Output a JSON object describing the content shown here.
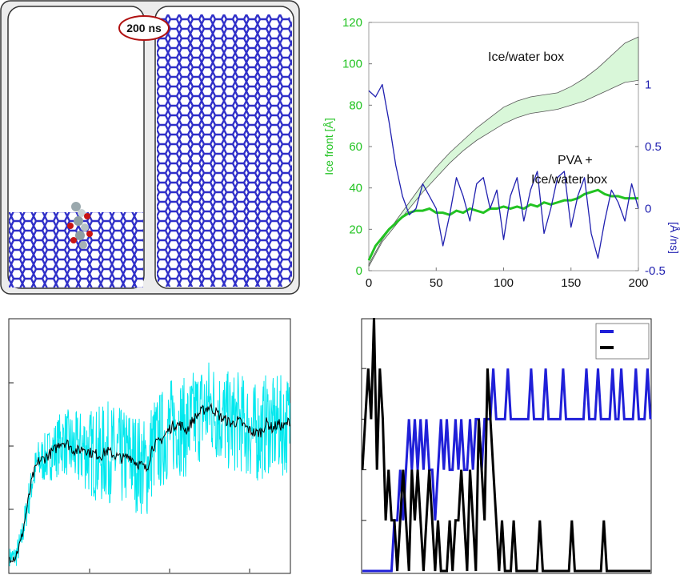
{
  "badge": "200 ns",
  "colors": {
    "ice": "#2f2fc8",
    "front": "#22c322",
    "band_fill": "#d9f7d9",
    "rate": "#2020b0",
    "cyan": "#00e8ee",
    "black": "#000000",
    "blue": "#1f1fd8",
    "badge_border": "#b01010"
  },
  "chart_data": [
    {
      "type": "line",
      "panel": "ice-front-vs-time",
      "yaxis_left": {
        "label": "Ice front [Å]",
        "ticks": [
          "0",
          "20",
          "40",
          "60",
          "80",
          "100",
          "120"
        ],
        "lim": [
          0,
          120
        ]
      },
      "yaxis_right": {
        "label": "[Å /ns]",
        "ticks": [
          "-0.5",
          "0",
          "0.5",
          "1"
        ],
        "lim": [
          -0.5,
          1.5
        ]
      },
      "xaxis": {
        "ticks": [
          "0",
          "50",
          "100",
          "150",
          "200"
        ],
        "lim": [
          0,
          200
        ]
      },
      "annotations": [
        "Ice/water box",
        "PVA +",
        "Ice/water box"
      ],
      "series": [
        {
          "axis": "left",
          "kind": "band",
          "x": [
            0,
            10,
            20,
            30,
            40,
            50,
            60,
            70,
            80,
            90,
            100,
            110,
            120,
            130,
            140,
            150,
            160,
            170,
            180,
            190,
            200
          ],
          "lower": [
            2,
            14,
            22,
            30,
            38,
            45,
            52,
            58,
            63,
            67,
            71,
            74,
            76,
            77,
            78,
            80,
            82,
            85,
            88,
            91,
            92
          ],
          "upper": [
            3,
            15,
            24,
            33,
            42,
            50,
            57,
            63,
            69,
            74,
            79,
            82,
            84,
            85,
            86,
            89,
            93,
            98,
            104,
            110,
            113
          ]
        },
        {
          "axis": "left",
          "kind": "line",
          "x": [
            0,
            5,
            10,
            15,
            20,
            25,
            30,
            35,
            40,
            45,
            50,
            55,
            60,
            65,
            70,
            75,
            80,
            85,
            90,
            95,
            100,
            105,
            110,
            115,
            120,
            125,
            130,
            135,
            140,
            145,
            150,
            155,
            160,
            165,
            170,
            175,
            180,
            185,
            190,
            195,
            200
          ],
          "y": [
            5,
            12,
            16,
            20,
            23,
            26,
            28,
            29,
            29,
            30,
            28,
            28,
            27,
            29,
            28,
            30,
            29,
            28,
            30,
            30,
            31,
            30,
            31,
            30,
            32,
            31,
            33,
            32,
            33,
            34,
            34,
            35,
            37,
            38,
            39,
            37,
            36,
            36,
            35,
            35,
            35
          ]
        },
        {
          "axis": "right",
          "kind": "line",
          "x": [
            0,
            5,
            10,
            15,
            20,
            25,
            30,
            35,
            40,
            45,
            50,
            55,
            60,
            65,
            70,
            75,
            80,
            85,
            90,
            95,
            100,
            105,
            110,
            115,
            120,
            125,
            130,
            135,
            140,
            145,
            150,
            155,
            160,
            165,
            170,
            175,
            180,
            185,
            190,
            195,
            200
          ],
          "y": [
            0.95,
            0.9,
            1.0,
            0.7,
            0.35,
            0.1,
            -0.05,
            0.0,
            0.2,
            0.1,
            0.0,
            -0.3,
            -0.05,
            0.25,
            0.1,
            -0.1,
            0.2,
            0.25,
            0.0,
            0.15,
            -0.25,
            0.1,
            0.25,
            -0.1,
            0.15,
            0.3,
            -0.2,
            0.0,
            0.25,
            0.3,
            -0.15,
            0.1,
            0.25,
            -0.2,
            -0.4,
            -0.1,
            0.15,
            0.05,
            -0.1,
            0.2,
            0.0
          ]
        }
      ]
    },
    {
      "type": "line",
      "panel": "bottom-left",
      "series": [
        {
          "kind": "noisy-band",
          "center": [
            1,
            1,
            2,
            4,
            6,
            7,
            7.2,
            7.5,
            7.8,
            8.3,
            8.2,
            7.8,
            7.7,
            7.9,
            7.6,
            7.5,
            7.4,
            7.7,
            7.5,
            7.3,
            7.2,
            7.4,
            7.0,
            6.8,
            6.5,
            8.0,
            8.2,
            8.6,
            9.1,
            9.4,
            9.3,
            9.0,
            9.6,
            10.0,
            10.3,
            10.5,
            10.2,
            9.8,
            9.6,
            9.4,
            9.6,
            9.3,
            9.0,
            8.8,
            8.9,
            9.5,
            9.1,
            9.4,
            9.2,
            9.6
          ]
        },
        {
          "kind": "line",
          "y": [
            1,
            1,
            2,
            4,
            6,
            7,
            7.2,
            7.5,
            7.8,
            8.3,
            8.2,
            7.8,
            7.7,
            7.9,
            7.6,
            7.5,
            7.4,
            7.7,
            7.5,
            7.3,
            7.2,
            7.4,
            7.0,
            6.8,
            6.5,
            8.0,
            8.2,
            8.6,
            9.1,
            9.4,
            9.3,
            9.0,
            9.6,
            10.0,
            10.3,
            10.5,
            10.2,
            9.8,
            9.6,
            9.4,
            9.6,
            9.3,
            9.0,
            8.8,
            8.9,
            9.5,
            9.1,
            9.4,
            9.2,
            9.6
          ]
        }
      ],
      "ylim": [
        0,
        16
      ]
    },
    {
      "type": "line",
      "panel": "bottom-right",
      "legend": {
        "position": "top-right",
        "entries": [
          "",
          ""
        ]
      },
      "ylim": [
        0,
        5
      ],
      "series": [
        {
          "color": "blue",
          "y": [
            0,
            0,
            0,
            0,
            0,
            0,
            0,
            0,
            0,
            0,
            0,
            1,
            1,
            2,
            1,
            2,
            3,
            2,
            3,
            2,
            3,
            2,
            3,
            2,
            2,
            1,
            2,
            3,
            2,
            3,
            2,
            2,
            3,
            2,
            3,
            2,
            2,
            3,
            2,
            3,
            3,
            2,
            3,
            3,
            3,
            4,
            3,
            3,
            3,
            3,
            4,
            3,
            3,
            3,
            3,
            3,
            3,
            3,
            4,
            3,
            3,
            3,
            3,
            4,
            3,
            3,
            3,
            3,
            3,
            4,
            3,
            3,
            3,
            3,
            3,
            3,
            3,
            4,
            3,
            3,
            3,
            4,
            3,
            3,
            3,
            3,
            4,
            3,
            3,
            4,
            3,
            3,
            3,
            3,
            4,
            3,
            3,
            3,
            4,
            3
          ]
        },
        {
          "color": "black",
          "y": [
            2,
            3,
            4,
            3,
            5,
            2,
            4,
            3,
            1,
            2,
            1,
            1,
            0,
            1,
            2,
            1,
            0,
            2,
            1,
            2,
            1,
            0,
            1,
            2,
            1,
            0,
            1,
            0,
            0,
            0,
            1,
            0,
            1,
            1,
            2,
            1,
            0,
            2,
            1,
            0,
            3,
            2,
            1,
            4,
            3,
            2,
            1,
            0,
            1,
            0,
            0,
            0,
            1,
            0,
            0,
            0,
            0,
            0,
            0,
            0,
            0,
            1,
            0,
            0,
            0,
            0,
            0,
            0,
            0,
            0,
            0,
            0,
            1,
            0,
            0,
            0,
            0,
            0,
            0,
            0,
            0,
            0,
            0,
            1,
            0,
            0,
            0,
            0,
            0,
            0,
            0,
            0,
            0,
            0,
            0,
            0,
            0,
            0,
            0,
            0
          ]
        }
      ]
    }
  ]
}
